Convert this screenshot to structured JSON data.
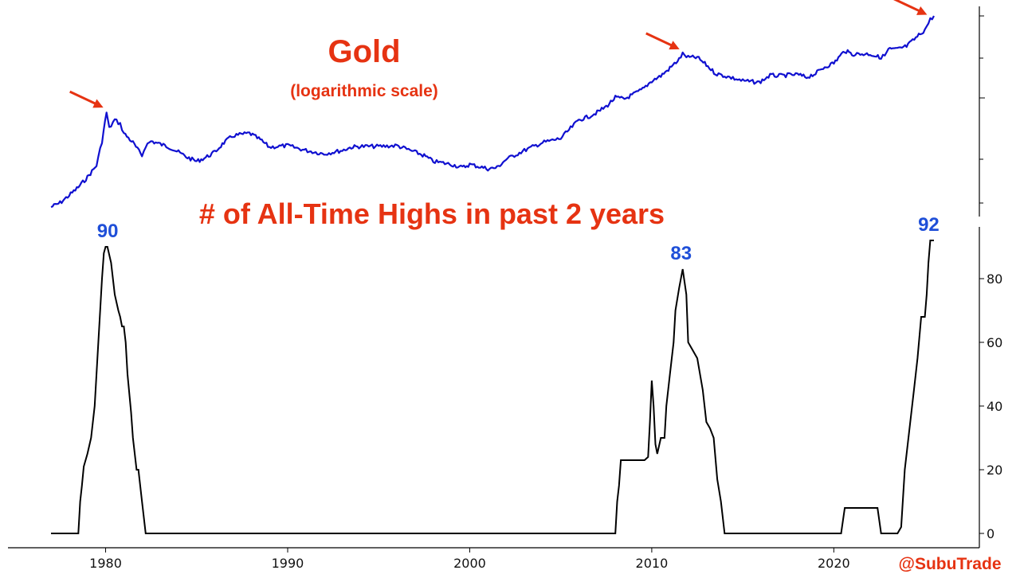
{
  "colors": {
    "gold_line": "#1010d0",
    "count_line": "#000000",
    "title": "#e63312",
    "peak_label": "#1f4fd8",
    "arrow": "#e63312",
    "axis": "#000000"
  },
  "texts": {
    "title": "Gold",
    "subtitle": "(logarithmic scale)",
    "count_title": "# of All-Time Highs in past 2 years",
    "credit": "@SubuTrade"
  },
  "chart_data": [
    {
      "type": "line",
      "title": "Gold",
      "subtitle": "(logarithmic scale)",
      "log_scale": true,
      "y_tick_labels_visible": false,
      "xlim": [
        1977.0,
        2025.5
      ],
      "series": [
        {
          "name": "Gold",
          "color": "#1010d0",
          "x": [
            1977.0,
            1977.5,
            1978.0,
            1978.5,
            1979.0,
            1979.5,
            1979.8,
            1980.05,
            1980.2,
            1980.5,
            1980.8,
            1981.0,
            1981.5,
            1982.0,
            1982.2,
            1982.5,
            1983.0,
            1983.5,
            1984.0,
            1984.5,
            1985.0,
            1985.5,
            1986.0,
            1986.5,
            1987.0,
            1987.9,
            1988.5,
            1989.0,
            1990.0,
            1991.0,
            1992.0,
            1993.0,
            1993.5,
            1994.0,
            1995.0,
            1996.0,
            1997.0,
            1997.5,
            1998.0,
            1999.0,
            1999.6,
            2000.0,
            2000.5,
            2001.0,
            2001.5,
            2002.0,
            2003.0,
            2004.0,
            2005.0,
            2006.0,
            2006.5,
            2007.0,
            2007.5,
            2008.0,
            2008.5,
            2009.0,
            2009.5,
            2010.0,
            2010.5,
            2011.0,
            2011.5,
            2011.7,
            2012.0,
            2012.5,
            2013.0,
            2013.5,
            2014.0,
            2015.0,
            2015.9,
            2016.5,
            2017.0,
            2018.0,
            2018.5,
            2019.0,
            2019.5,
            2020.0,
            2020.6,
            2021.0,
            2022.0,
            2022.5,
            2022.8,
            2023.0,
            2023.5,
            2024.0,
            2024.5,
            2025.0,
            2025.3,
            2025.5
          ],
          "values": [
            140,
            150,
            170,
            195,
            230,
            280,
            420,
            680,
            520,
            600,
            560,
            480,
            410,
            330,
            390,
            420,
            400,
            380,
            350,
            320,
            300,
            320,
            350,
            410,
            460,
            480,
            430,
            380,
            390,
            360,
            340,
            360,
            380,
            385,
            385,
            390,
            350,
            330,
            300,
            285,
            270,
            285,
            275,
            265,
            270,
            310,
            360,
            410,
            440,
            600,
            630,
            680,
            750,
            870,
            850,
            920,
            1000,
            1150,
            1250,
            1420,
            1650,
            1800,
            1700,
            1700,
            1500,
            1300,
            1250,
            1150,
            1120,
            1260,
            1250,
            1280,
            1220,
            1300,
            1450,
            1550,
            1900,
            1800,
            1800,
            1700,
            1750,
            1950,
            1950,
            2050,
            2350,
            2700,
            3200,
            3400
          ]
        }
      ],
      "arrows_at_x": [
        1980.05,
        2011.7,
        2025.3
      ]
    },
    {
      "type": "line",
      "title": "# of All-Time Highs in past 2 years",
      "xlim": [
        1977.0,
        2025.5
      ],
      "ylim": [
        0,
        95
      ],
      "x_ticks": [
        1980,
        1990,
        2000,
        2010,
        2020
      ],
      "y_ticks": [
        0,
        20,
        40,
        60,
        80
      ],
      "series": [
        {
          "name": "# of All-Time Highs in past 2 years",
          "color": "#000000",
          "x": [
            1977.0,
            1978.5,
            1978.6,
            1978.7,
            1978.8,
            1979.0,
            1979.2,
            1979.4,
            1979.5,
            1979.6,
            1979.7,
            1979.8,
            1979.9,
            1980.0,
            1980.1,
            1980.3,
            1980.4,
            1980.5,
            1980.7,
            1980.8,
            1980.9,
            1981.0,
            1981.1,
            1981.2,
            1981.4,
            1981.5,
            1981.7,
            1981.8,
            1982.0,
            1982.1,
            1982.2,
            1990.0,
            2000.0,
            2008.0,
            2008.1,
            2008.2,
            2008.3,
            2009.0,
            2009.6,
            2009.8,
            2009.9,
            2010.0,
            2010.1,
            2010.2,
            2010.3,
            2010.5,
            2010.7,
            2010.8,
            2011.0,
            2011.2,
            2011.3,
            2011.5,
            2011.7,
            2011.9,
            2012.0,
            2012.2,
            2012.5,
            2012.8,
            2013.0,
            2013.2,
            2013.4,
            2013.6,
            2013.8,
            2014.0,
            2020.4,
            2020.6,
            2021.5,
            2022.4,
            2022.6,
            2023.5,
            2023.7,
            2023.9,
            2024.0,
            2024.2,
            2024.4,
            2024.6,
            2024.8,
            2025.0,
            2025.1,
            2025.2,
            2025.3,
            2025.4,
            2025.5
          ],
          "values": [
            0,
            0,
            10,
            15,
            21,
            25,
            30,
            40,
            50,
            60,
            70,
            80,
            88,
            90,
            90,
            85,
            80,
            75,
            70,
            68,
            65,
            65,
            60,
            50,
            38,
            30,
            20,
            20,
            10,
            5,
            0,
            0,
            0,
            0,
            10,
            15,
            23,
            23,
            23,
            24,
            35,
            48,
            40,
            28,
            25,
            30,
            30,
            40,
            50,
            60,
            70,
            77,
            83,
            75,
            60,
            58,
            55,
            45,
            35,
            33,
            30,
            17,
            10,
            0,
            0,
            8,
            8,
            8,
            0,
            0,
            2,
            20,
            25,
            35,
            45,
            55,
            68,
            68,
            75,
            85,
            92,
            92,
            92
          ]
        }
      ],
      "annotations": [
        {
          "text": "90",
          "x": 1980.2,
          "y": 90
        },
        {
          "text": "83",
          "x": 2011.7,
          "y": 83
        },
        {
          "text": "92",
          "x": 2025.3,
          "y": 92
        }
      ]
    }
  ]
}
